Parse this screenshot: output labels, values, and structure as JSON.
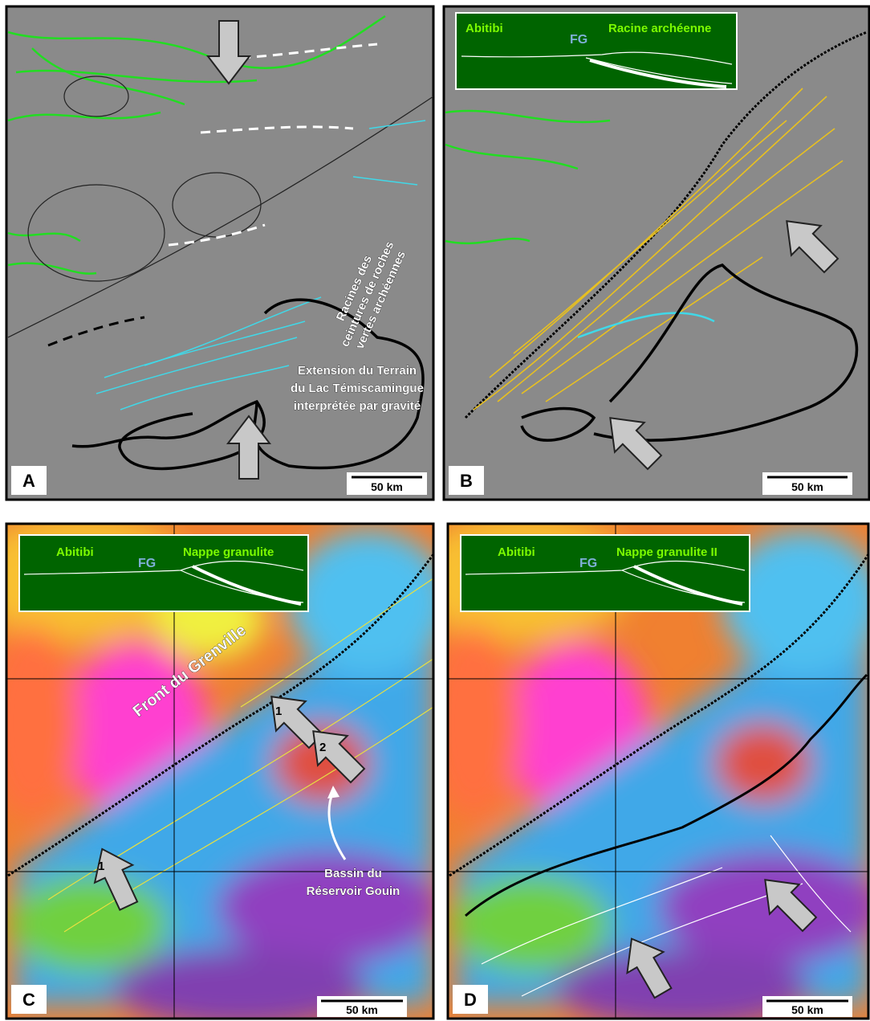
{
  "panels": [
    {
      "label": "A",
      "scale": "50 km",
      "roots": [
        "Racines des",
        "ceintures de roches",
        "vertes archéennes"
      ],
      "extension": [
        "Extension du Terrain",
        "du Lac Témiscamingue",
        "interprétée par gravité"
      ]
    },
    {
      "label": "B",
      "scale": "50 km",
      "inset": {
        "left": "Abitibi",
        "front": "FG",
        "right": "Racine archéenne"
      }
    },
    {
      "label": "C",
      "scale": "50 km",
      "inset": {
        "left": "Abitibi",
        "front": "FG",
        "right": "Nappe granulite"
      },
      "front_label": "Front du Grenville",
      "arrow_numbers": [
        "1",
        "2",
        "1"
      ],
      "basin": [
        "Bassin du",
        "Réservoir Gouin"
      ]
    },
    {
      "label": "D",
      "scale": "50 km",
      "inset": {
        "left": "Abitibi",
        "front": "FG",
        "right": "Nappe granulite II"
      }
    }
  ]
}
